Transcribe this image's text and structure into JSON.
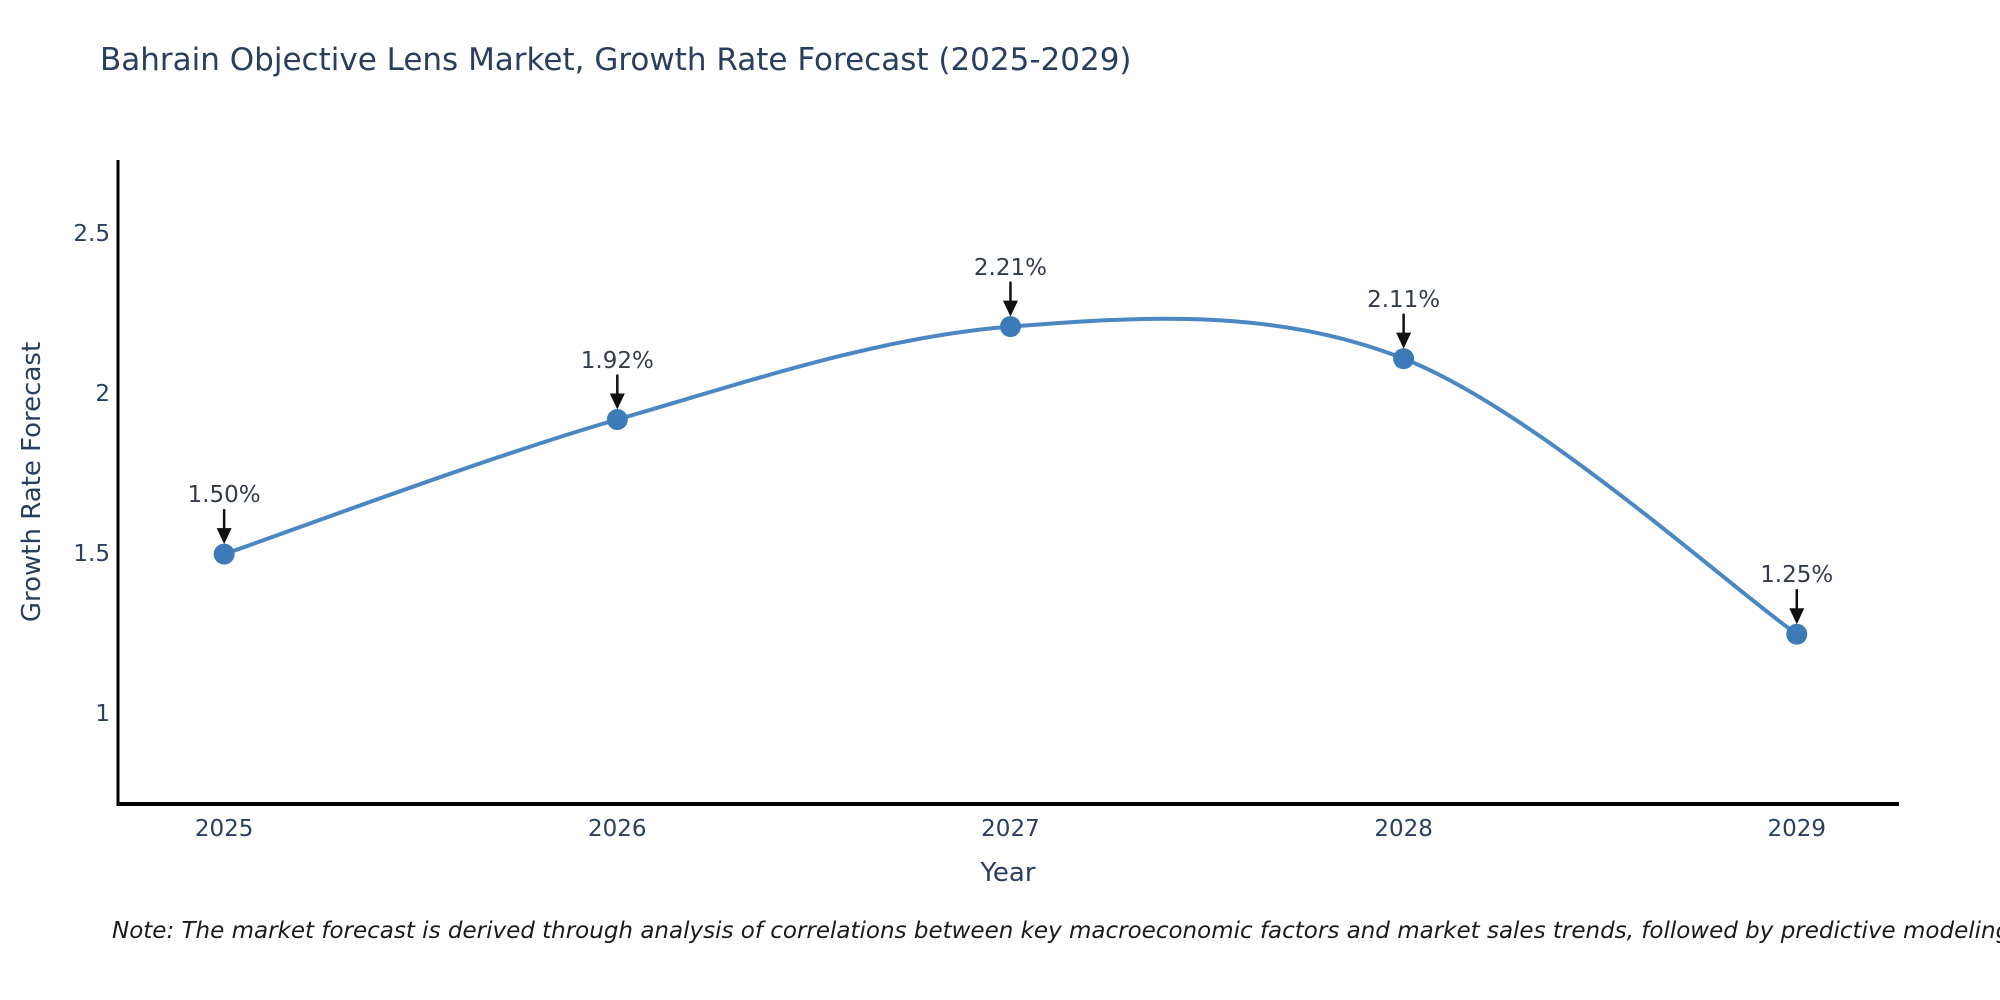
{
  "title": "Bahrain Objective Lens Market, Growth Rate Forecast (2025-2029)",
  "note": "Note: The market forecast is derived through analysis of correlations between key macroeconomic factors and market sales trends, followed by predictive modeling to project future sales",
  "chart_data": {
    "type": "line",
    "line_shape": "spline",
    "title": "Bahrain Objective Lens Market, Growth Rate Forecast (2025-2029)",
    "xlabel": "Year",
    "ylabel": "Growth Rate Forecast",
    "x": [
      2025,
      2026,
      2027,
      2028,
      2029
    ],
    "series": [
      {
        "name": "Growth Rate Forecast",
        "values": [
          1.5,
          1.92,
          2.21,
          2.11,
          1.25
        ]
      }
    ],
    "point_labels": [
      "1.50%",
      "1.92%",
      "2.21%",
      "2.11%",
      "1.25%"
    ],
    "x_ticks": [
      "2025",
      "2026",
      "2027",
      "2028",
      "2029"
    ],
    "y_ticks": [
      1,
      1.5,
      2,
      2.5
    ],
    "xlim": [
      2024.73,
      2029.26
    ],
    "ylim": [
      0.72,
      2.73
    ],
    "grid": false,
    "legend_position": "none",
    "annotations_have_arrows": true,
    "colors": {
      "line": "#4a87c3",
      "marker": "#3d7bb8",
      "arrow": "#111111",
      "axis_line": "#000000",
      "heading_text": "#2a3f5f",
      "annotation_text": "#333c4a",
      "note_text": "#1a1a1a",
      "background": "#ffffff"
    }
  }
}
